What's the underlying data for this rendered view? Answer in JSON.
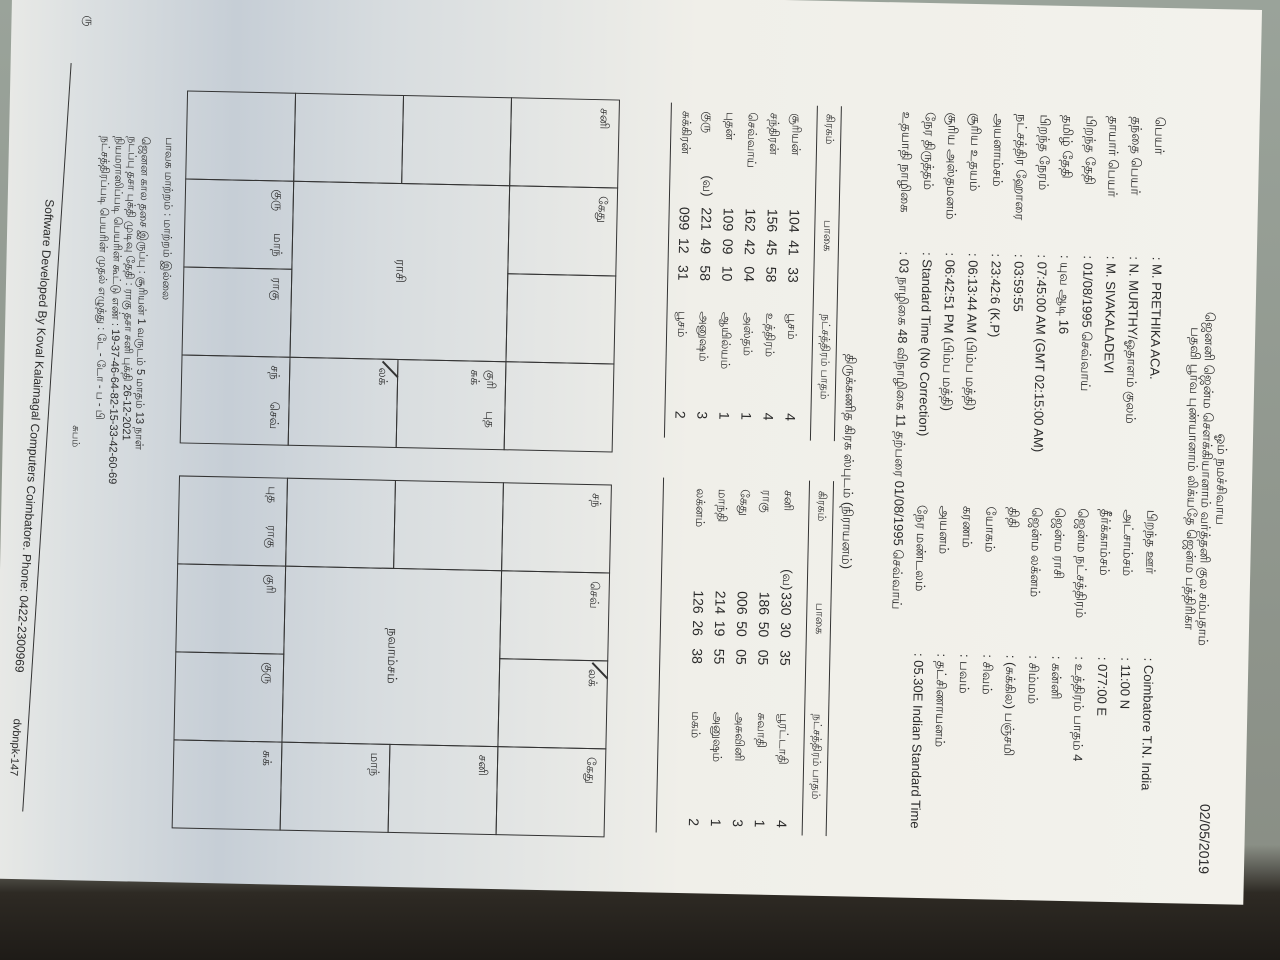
{
  "header": {
    "invocation": "ஓம் நமச்சிவாய",
    "verse_line1": "ஜெனனி ஜென்ம சௌக்கியானாம் வர்த்தனி குல சம்பதாம்",
    "verse_line2": "பதவி பூர்வ புண்யானாம் லிக்யதே ஜென்ம பத்திரிகா",
    "date": "02/05/2019"
  },
  "details_left": [
    {
      "label": "பெயர்",
      "value": ": M. PRETHIKA ACA."
    },
    {
      "label": "தந்தை பெயர்",
      "value": ": N. MURTHY/ஓதாளம் குலம்"
    },
    {
      "label": "தாயார் பெயர்",
      "value": ": M. SIVAKALADEVI"
    },
    {
      "label": "பிறந்த தேதி",
      "value": ": 01/08/1995 செவ்வாய்"
    },
    {
      "label": "தமிழ் தேதி",
      "value": ": யுவ ஆடி 16"
    },
    {
      "label": "பிறந்த நேரம்",
      "value": ": 07:45:00 AM (GMT 02:15:00 AM)"
    },
    {
      "label": "நட்சத்திர ஹோரை",
      "value": ": 03:59:55"
    },
    {
      "label": "அயனாம்சம்",
      "value": ": 23:42:6 (K.P)"
    },
    {
      "label": "சூரிய உதயம்",
      "value": ": 06:13:44 AM (பிம்ப மத்தி)"
    },
    {
      "label": "சூரிய அஸ்தமனம்",
      "value": ": 06:42:51 PM (பிம்ப மத்தி)"
    },
    {
      "label": "நேர திருத்தம்",
      "value": ": Standard Time (No Correction)"
    },
    {
      "label": "உதயாதி நாழிகை",
      "value": ": 03 நாழிகை  48 விநாழிகை  11 தற்பரை 01/08/1995 செவ்வாய்"
    }
  ],
  "details_right": [
    {
      "label": "பிறந்த ஊர்",
      "value": ": Coimbatore  T.N. India"
    },
    {
      "label": "அட்சாம்சம்",
      "value": ": 11:00 N"
    },
    {
      "label": "தீர்க்காம்சம்",
      "value": ": 077:00 E"
    },
    {
      "label": "ஜென்ம நட்சத்திரம்",
      "value": ": உத்திரம் பாதம் 4"
    },
    {
      "label": "ஜென்ம ராசி",
      "value": ": கன்னி"
    },
    {
      "label": "ஜென்ம லக்னம்",
      "value": ": சிம்மம்"
    },
    {
      "label": "திதி",
      "value": ": (சுக்கில) பஞ்சமி"
    },
    {
      "label": "யோகம்",
      "value": ": சிவம்"
    },
    {
      "label": "கரணம்",
      "value": ": பவம்"
    },
    {
      "label": "அயனம்",
      "value": ": தட்சிணாயனம்"
    },
    {
      "label": "நேர மண்டலம்",
      "value": ": 05.30E  Indian Standard Time"
    }
  ],
  "planet_section_title": "திருக்கணித கிரக ஸ்புடம் (நிராயனம்)",
  "planet_table_headers": {
    "planet": "கிரகம்",
    "degree": "பாகை",
    "star_pada": "நட்சத்திரம்  பாதம்"
  },
  "planet_table_left": [
    {
      "planet": "சூரியன்",
      "retro": "",
      "deg": "104",
      "min": "41",
      "sec": "33",
      "star": "பூசம்",
      "pada": "4"
    },
    {
      "planet": "சந்திரன்",
      "retro": "",
      "deg": "156",
      "min": "45",
      "sec": "58",
      "star": "உத்திரம்",
      "pada": "4"
    },
    {
      "planet": "செவ்வாய்",
      "retro": "",
      "deg": "162",
      "min": "42",
      "sec": "04",
      "star": "அஸ்தம்",
      "pada": "1"
    },
    {
      "planet": "புதன்",
      "retro": "",
      "deg": "109",
      "min": "09",
      "sec": "10",
      "star": "ஆயில்யம்",
      "pada": "1"
    },
    {
      "planet": "குரு",
      "retro": "(வ)",
      "deg": "221",
      "min": "49",
      "sec": "58",
      "star": "அனுஷம்",
      "pada": "3"
    },
    {
      "planet": "சுக்கிரன்",
      "retro": "",
      "deg": "099",
      "min": "12",
      "sec": "31",
      "star": "பூசம்",
      "pada": "2"
    }
  ],
  "planet_table_right": [
    {
      "planet": "சனி",
      "retro": "(வ)",
      "deg": "330",
      "min": "30",
      "sec": "35",
      "star": "பூரட்டாதி",
      "pada": "4"
    },
    {
      "planet": "ராகு",
      "retro": "",
      "deg": "186",
      "min": "50",
      "sec": "05",
      "star": "சுவாதி",
      "pada": "1"
    },
    {
      "planet": "கேது",
      "retro": "",
      "deg": "006",
      "min": "50",
      "sec": "05",
      "star": "அசுவினி",
      "pada": "3"
    },
    {
      "planet": "மாந்தி",
      "retro": "",
      "deg": "214",
      "min": "19",
      "sec": "55",
      "star": "அனுஷம்",
      "pada": "1"
    },
    {
      "planet": "லக்னம்",
      "retro": "",
      "deg": "126",
      "min": "26",
      "sec": "38",
      "star": "மகம்",
      "pada": "2"
    }
  ],
  "charts": [
    {
      "title": "ராசி",
      "cells": {
        "r1c1": [
          [
            "சனி"
          ]
        ],
        "r1c2": [
          [
            "கேது"
          ]
        ],
        "r1c3": [],
        "r1c4": [],
        "r2c1": [],
        "r2c4": [
          [
            "குரி",
            "புத"
          ],
          [
            "சுக்"
          ]
        ],
        "r3c1": [],
        "r3c4": [
          [
            "லக்"
          ]
        ],
        "r4c1": [],
        "r4c2": [
          [
            "குரு",
            "மாந்"
          ]
        ],
        "r4c3": [
          [
            "ராகு"
          ]
        ],
        "r4c4": [
          [
            "சந்",
            "செவ்"
          ]
        ]
      },
      "lagna_cell": "r3c4"
    },
    {
      "title": "நவாம்சம்",
      "cells": {
        "r1c1": [
          [
            "சந்"
          ]
        ],
        "r1c2": [
          [
            "செவ்"
          ]
        ],
        "r1c3": [
          [
            "லக்"
          ]
        ],
        "r1c4": [
          [
            "கேது"
          ]
        ],
        "r2c1": [],
        "r2c4": [
          [
            "சனி"
          ]
        ],
        "r3c1": [],
        "r3c4": [
          [
            "மாந்"
          ]
        ],
        "r4c1": [
          [
            "புத",
            "ராகு"
          ]
        ],
        "r4c2": [
          [
            "குரி"
          ]
        ],
        "r4c3": [
          [
            "குரு"
          ]
        ],
        "r4c4": [
          [
            "சுக்"
          ]
        ]
      },
      "lagna_cell": "r1c3"
    }
  ],
  "notes": [
    "பாவக மாற்றம் : மாற்றம் இல்லை",
    "ஜெனன கால தசை இருப்பு : சூரியன் 1 வருடம் 5 மாதம் 13 நாள்",
    "நடப்பு தசா புக்தி முடிவு தேதி : ராகு தசா  சனி புக்தி 26-12-2021",
    "நியமராஸிப்படி பெயரின் கூட்டு எண் : 19-37-46-64-82-15-33-42-60-69",
    "நட்சத்திரப்படி பெயரின் முதல் எழுத்து : டே - டோ - ப - பி"
  ],
  "closing": "சுபம்",
  "footer": {
    "credit": "Software Developed By  Koval Kalaimagal Computers Coimbatore.  Phone: 0422-2300969",
    "code": "dvbnpk-147"
  },
  "page_mark": "ரு"
}
